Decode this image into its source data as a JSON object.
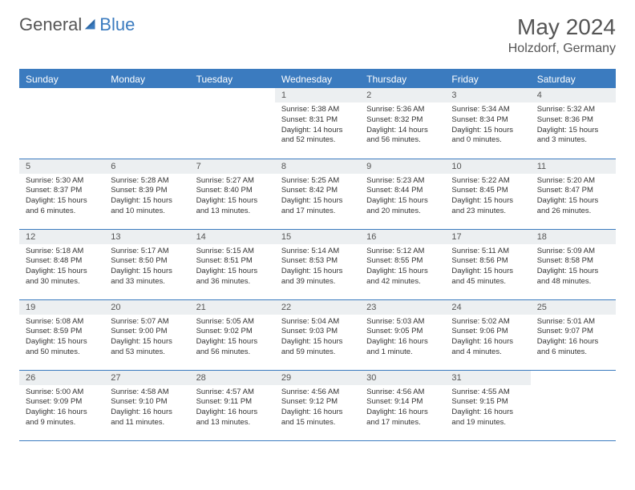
{
  "logo": {
    "part1": "General",
    "part2": "Blue"
  },
  "title": "May 2024",
  "location": "Holzdorf, Germany",
  "colors": {
    "accent": "#3b7bbf",
    "header_bg": "#3b7bbf",
    "header_text": "#ffffff",
    "daynum_bg": "#eceff1",
    "text": "#333333",
    "title_text": "#555555",
    "background": "#ffffff"
  },
  "dow": [
    "Sunday",
    "Monday",
    "Tuesday",
    "Wednesday",
    "Thursday",
    "Friday",
    "Saturday"
  ],
  "weeks": [
    [
      null,
      null,
      null,
      {
        "n": "1",
        "sr": "5:38 AM",
        "ss": "8:31 PM",
        "dl": "14 hours and 52 minutes."
      },
      {
        "n": "2",
        "sr": "5:36 AM",
        "ss": "8:32 PM",
        "dl": "14 hours and 56 minutes."
      },
      {
        "n": "3",
        "sr": "5:34 AM",
        "ss": "8:34 PM",
        "dl": "15 hours and 0 minutes."
      },
      {
        "n": "4",
        "sr": "5:32 AM",
        "ss": "8:36 PM",
        "dl": "15 hours and 3 minutes."
      }
    ],
    [
      {
        "n": "5",
        "sr": "5:30 AM",
        "ss": "8:37 PM",
        "dl": "15 hours and 6 minutes."
      },
      {
        "n": "6",
        "sr": "5:28 AM",
        "ss": "8:39 PM",
        "dl": "15 hours and 10 minutes."
      },
      {
        "n": "7",
        "sr": "5:27 AM",
        "ss": "8:40 PM",
        "dl": "15 hours and 13 minutes."
      },
      {
        "n": "8",
        "sr": "5:25 AM",
        "ss": "8:42 PM",
        "dl": "15 hours and 17 minutes."
      },
      {
        "n": "9",
        "sr": "5:23 AM",
        "ss": "8:44 PM",
        "dl": "15 hours and 20 minutes."
      },
      {
        "n": "10",
        "sr": "5:22 AM",
        "ss": "8:45 PM",
        "dl": "15 hours and 23 minutes."
      },
      {
        "n": "11",
        "sr": "5:20 AM",
        "ss": "8:47 PM",
        "dl": "15 hours and 26 minutes."
      }
    ],
    [
      {
        "n": "12",
        "sr": "5:18 AM",
        "ss": "8:48 PM",
        "dl": "15 hours and 30 minutes."
      },
      {
        "n": "13",
        "sr": "5:17 AM",
        "ss": "8:50 PM",
        "dl": "15 hours and 33 minutes."
      },
      {
        "n": "14",
        "sr": "5:15 AM",
        "ss": "8:51 PM",
        "dl": "15 hours and 36 minutes."
      },
      {
        "n": "15",
        "sr": "5:14 AM",
        "ss": "8:53 PM",
        "dl": "15 hours and 39 minutes."
      },
      {
        "n": "16",
        "sr": "5:12 AM",
        "ss": "8:55 PM",
        "dl": "15 hours and 42 minutes."
      },
      {
        "n": "17",
        "sr": "5:11 AM",
        "ss": "8:56 PM",
        "dl": "15 hours and 45 minutes."
      },
      {
        "n": "18",
        "sr": "5:09 AM",
        "ss": "8:58 PM",
        "dl": "15 hours and 48 minutes."
      }
    ],
    [
      {
        "n": "19",
        "sr": "5:08 AM",
        "ss": "8:59 PM",
        "dl": "15 hours and 50 minutes."
      },
      {
        "n": "20",
        "sr": "5:07 AM",
        "ss": "9:00 PM",
        "dl": "15 hours and 53 minutes."
      },
      {
        "n": "21",
        "sr": "5:05 AM",
        "ss": "9:02 PM",
        "dl": "15 hours and 56 minutes."
      },
      {
        "n": "22",
        "sr": "5:04 AM",
        "ss": "9:03 PM",
        "dl": "15 hours and 59 minutes."
      },
      {
        "n": "23",
        "sr": "5:03 AM",
        "ss": "9:05 PM",
        "dl": "16 hours and 1 minute."
      },
      {
        "n": "24",
        "sr": "5:02 AM",
        "ss": "9:06 PM",
        "dl": "16 hours and 4 minutes."
      },
      {
        "n": "25",
        "sr": "5:01 AM",
        "ss": "9:07 PM",
        "dl": "16 hours and 6 minutes."
      }
    ],
    [
      {
        "n": "26",
        "sr": "5:00 AM",
        "ss": "9:09 PM",
        "dl": "16 hours and 9 minutes."
      },
      {
        "n": "27",
        "sr": "4:58 AM",
        "ss": "9:10 PM",
        "dl": "16 hours and 11 minutes."
      },
      {
        "n": "28",
        "sr": "4:57 AM",
        "ss": "9:11 PM",
        "dl": "16 hours and 13 minutes."
      },
      {
        "n": "29",
        "sr": "4:56 AM",
        "ss": "9:12 PM",
        "dl": "16 hours and 15 minutes."
      },
      {
        "n": "30",
        "sr": "4:56 AM",
        "ss": "9:14 PM",
        "dl": "16 hours and 17 minutes."
      },
      {
        "n": "31",
        "sr": "4:55 AM",
        "ss": "9:15 PM",
        "dl": "16 hours and 19 minutes."
      },
      null
    ]
  ],
  "labels": {
    "sunrise": "Sunrise:",
    "sunset": "Sunset:",
    "daylight": "Daylight:"
  }
}
